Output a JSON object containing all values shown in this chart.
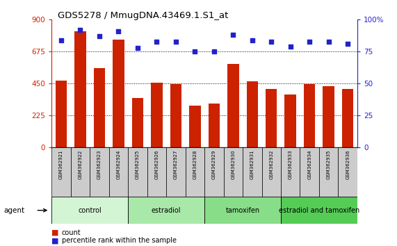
{
  "title": "GDS5278 / MmugDNA.43469.1.S1_at",
  "samples": [
    "GSM362921",
    "GSM362922",
    "GSM362923",
    "GSM362924",
    "GSM362925",
    "GSM362926",
    "GSM362927",
    "GSM362928",
    "GSM362929",
    "GSM362930",
    "GSM362931",
    "GSM362932",
    "GSM362933",
    "GSM362934",
    "GSM362935",
    "GSM362936"
  ],
  "counts": [
    470,
    820,
    560,
    760,
    350,
    455,
    445,
    295,
    310,
    590,
    465,
    415,
    375,
    445,
    430,
    415
  ],
  "percentiles": [
    84,
    92,
    87,
    91,
    78,
    83,
    83,
    75,
    75,
    88,
    84,
    83,
    79,
    83,
    83,
    81
  ],
  "groups": [
    {
      "label": "control",
      "start": 0,
      "end": 4,
      "color": "#d4f5d4"
    },
    {
      "label": "estradiol",
      "start": 4,
      "end": 8,
      "color": "#a8e8a8"
    },
    {
      "label": "tamoxifen",
      "start": 8,
      "end": 12,
      "color": "#88dd88"
    },
    {
      "label": "estradiol and tamoxifen",
      "start": 12,
      "end": 16,
      "color": "#55cc55"
    }
  ],
  "bar_color": "#cc2200",
  "dot_color": "#2222cc",
  "left_axis_color": "#cc2200",
  "right_axis_color": "#2222cc",
  "ylim_left": [
    0,
    900
  ],
  "ylim_right": [
    0,
    100
  ],
  "yticks_left": [
    0,
    225,
    450,
    675,
    900
  ],
  "yticks_right": [
    0,
    25,
    50,
    75,
    100
  ],
  "title_fontsize": 9.5,
  "sample_bg_color": "#cccccc",
  "group_border_color": "#000000"
}
